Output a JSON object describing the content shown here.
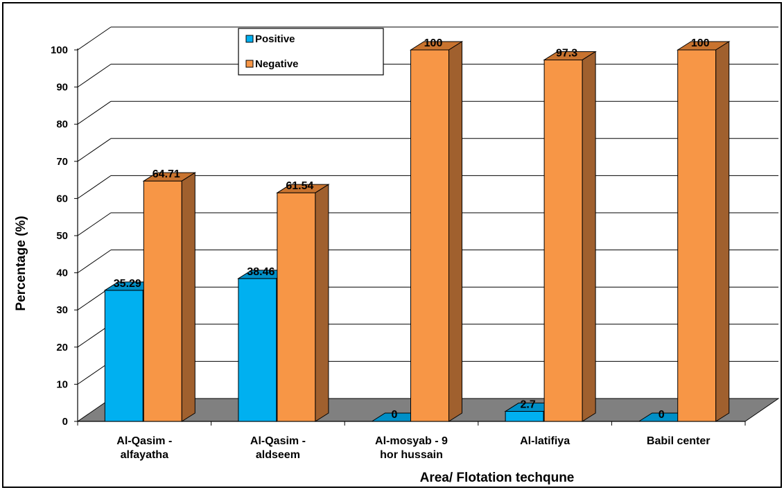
{
  "chart_data": {
    "type": "bar",
    "xlabel": "Area/  Flotation techqune",
    "ylabel": "Percentage (%)",
    "ylim": [
      0,
      100
    ],
    "yticks": [
      0,
      10,
      20,
      30,
      40,
      50,
      60,
      70,
      80,
      90,
      100
    ],
    "categories": [
      [
        "Al-Qasim -",
        "alfayatha"
      ],
      [
        "Al-Qasim -",
        "aldseem"
      ],
      [
        "Al-mosyab - 9",
        "hor hussain"
      ],
      [
        "Al-latifiya"
      ],
      [
        "Babil center"
      ]
    ],
    "series": [
      {
        "name": "Positive",
        "values": [
          35.29,
          38.46,
          0,
          2.7,
          0
        ],
        "labels": [
          "35.29",
          "38.46",
          "0",
          "2.7",
          "0"
        ],
        "color": "#00B0F0",
        "top_color": "#0090C8",
        "side_color": "#0070A0"
      },
      {
        "name": "Negative",
        "values": [
          64.71,
          61.54,
          100,
          97.3,
          100
        ],
        "labels": [
          "64.71",
          "61.54",
          "100",
          "97.3",
          "100"
        ],
        "color": "#F79646",
        "top_color": "#C8732F",
        "side_color": "#A0602E"
      }
    ],
    "grid": true,
    "legend_position": "top-center",
    "style": "3d-clustered-column",
    "floor_color": "#808080"
  }
}
